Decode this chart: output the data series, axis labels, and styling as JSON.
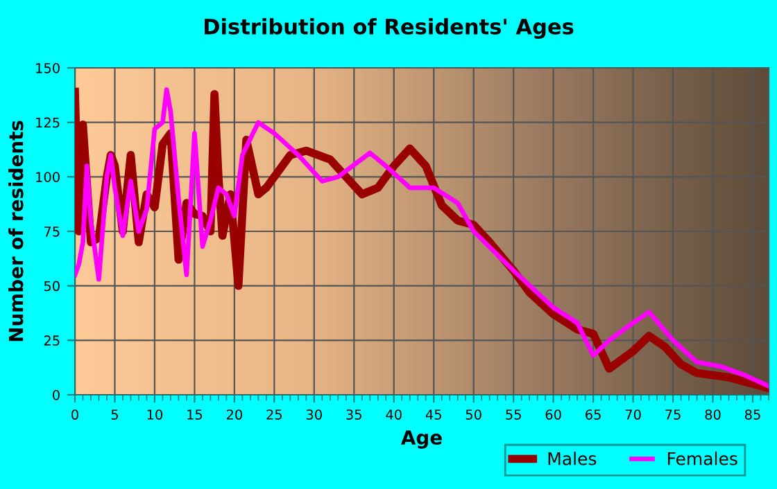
{
  "chart_data": {
    "type": "line",
    "title": "Distribution of Residents' Ages",
    "xlabel": "Age",
    "ylabel": "Number of residents",
    "xlim": [
      0,
      87
    ],
    "xticks": [
      0,
      5,
      10,
      15,
      20,
      25,
      30,
      35,
      40,
      45,
      50,
      55,
      60,
      65,
      70,
      75,
      80,
      85
    ],
    "ylim": [
      0,
      150
    ],
    "yticks": [
      0,
      25,
      50,
      75,
      100,
      125,
      150
    ],
    "grid": true,
    "legend": "bottom right",
    "series": [
      {
        "name": "Males",
        "color": "#990000",
        "x": [
          0,
          0.5,
          1,
          2,
          3,
          4,
          4.5,
          5,
          6,
          7,
          8,
          9,
          10,
          11,
          12,
          13,
          14,
          15,
          16,
          17,
          17.5,
          18,
          18.5,
          19.5,
          20.5,
          21.5,
          23,
          24,
          27,
          29,
          32,
          34,
          36,
          38,
          40,
          42,
          44,
          46,
          48,
          50,
          52,
          55,
          57,
          60,
          63,
          65,
          67,
          70,
          72,
          74,
          76,
          78,
          80,
          82,
          84,
          87
        ],
        "values": [
          139,
          75,
          124,
          70,
          72,
          100,
          110,
          105,
          75,
          110,
          70,
          92,
          86,
          115,
          120,
          62,
          88,
          83,
          82,
          75,
          138,
          100,
          73,
          92,
          50,
          117,
          92,
          95,
          110,
          112,
          108,
          100,
          92,
          95,
          105,
          113,
          105,
          87,
          80,
          78,
          70,
          57,
          47,
          37,
          30,
          28,
          12,
          20,
          27,
          22,
          14,
          10,
          9,
          8,
          6,
          3
        ]
      },
      {
        "name": "Females",
        "color": "#ff00ff",
        "x": [
          0,
          0.5,
          1,
          1.5,
          2,
          3,
          4,
          4.5,
          5,
          6,
          7,
          8,
          9,
          10,
          11,
          11.5,
          12,
          13,
          14,
          15,
          16,
          17,
          18,
          19,
          20,
          21,
          23,
          25,
          28,
          31,
          33,
          37,
          39,
          42,
          45,
          48,
          50,
          55,
          60,
          63,
          65,
          67,
          70,
          72,
          75,
          78,
          81,
          84,
          87
        ],
        "values": [
          55,
          60,
          70,
          105,
          80,
          53,
          100,
          110,
          95,
          73,
          98,
          75,
          85,
          122,
          125,
          140,
          130,
          90,
          55,
          120,
          68,
          80,
          95,
          92,
          82,
          110,
          125,
          120,
          110,
          98,
          100,
          111,
          105,
          95,
          95,
          88,
          75,
          57,
          40,
          33,
          18,
          25,
          33,
          38,
          25,
          15,
          13,
          9,
          4
        ]
      }
    ]
  }
}
